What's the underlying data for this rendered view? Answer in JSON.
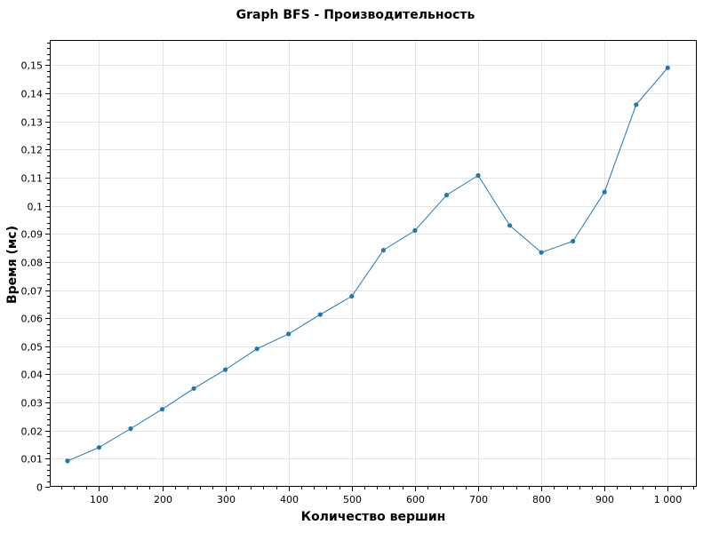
{
  "chart_data": {
    "type": "line",
    "title": "Graph BFS - Производительность",
    "xlabel": "Количество вершин",
    "ylabel": "Время (мс)",
    "x": [
      50,
      100,
      150,
      200,
      250,
      300,
      350,
      400,
      450,
      500,
      550,
      600,
      650,
      700,
      750,
      800,
      850,
      900,
      950,
      1000
    ],
    "series": [
      {
        "values": [
          0.0092,
          0.014,
          0.0207,
          0.0276,
          0.035,
          0.0417,
          0.0491,
          0.0544,
          0.0613,
          0.0678,
          0.0842,
          0.0912,
          0.1038,
          0.1108,
          0.093,
          0.0834,
          0.0874,
          0.1049,
          0.136,
          0.1491
        ],
        "color": "#1f77b4"
      }
    ],
    "xlim": [
      22,
      1046
    ],
    "ylim": [
      0,
      0.159
    ],
    "xticks": [
      100,
      200,
      300,
      400,
      500,
      600,
      700,
      800,
      900,
      1000
    ],
    "xtick_labels": [
      "100",
      "200",
      "300",
      "400",
      "500",
      "600",
      "700",
      "800",
      "900",
      "1 000"
    ],
    "yticks": [
      0,
      0.01,
      0.02,
      0.03,
      0.04,
      0.05,
      0.06,
      0.07,
      0.08,
      0.09,
      0.1,
      0.11,
      0.12,
      0.13,
      0.14,
      0.15
    ],
    "ytick_labels": [
      "0",
      "0,01",
      "0,02",
      "0,03",
      "0,04",
      "0,05",
      "0,06",
      "0,07",
      "0,08",
      "0,09",
      "0,1",
      "0,11",
      "0,12",
      "0,13",
      "0,14",
      "0,15"
    ],
    "grid": true,
    "legend": "none",
    "marker": "circle"
  }
}
